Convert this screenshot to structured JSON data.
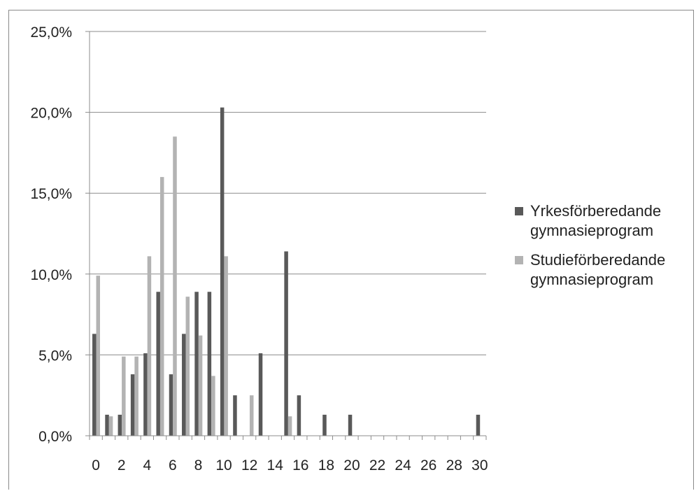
{
  "chart_data": {
    "type": "bar",
    "categories": [
      "0",
      "1",
      "2",
      "3",
      "4",
      "5",
      "6",
      "7",
      "8",
      "9",
      "10",
      "11",
      "12",
      "13",
      "14",
      "15",
      "16",
      "17",
      "18",
      "19",
      "20",
      "21",
      "22",
      "23",
      "24",
      "25",
      "26",
      "27",
      "28",
      "29",
      "30"
    ],
    "x_tick_labels": [
      "0",
      "2",
      "4",
      "6",
      "8",
      "10",
      "12",
      "14",
      "16",
      "18",
      "20",
      "22",
      "24",
      "26",
      "28",
      "30"
    ],
    "y_tick_labels": [
      "0,0%",
      "5,0%",
      "10,0%",
      "15,0%",
      "20,0%",
      "25,0%"
    ],
    "ylim": [
      0,
      25
    ],
    "y_unit": "%",
    "grid": true,
    "legend_position": "right",
    "series": [
      {
        "name": "Yrkesförberedande\ngymnasieprogram",
        "color": "#595959",
        "values": [
          6.3,
          1.3,
          1.3,
          3.8,
          5.1,
          8.9,
          3.8,
          6.3,
          8.9,
          8.9,
          20.3,
          2.5,
          0,
          5.1,
          0,
          11.4,
          2.5,
          0,
          1.3,
          0,
          1.3,
          0,
          0,
          0,
          0,
          0,
          0,
          0,
          0,
          0,
          1.3
        ]
      },
      {
        "name": "Studieförberedande\ngymnasieprogram",
        "color": "#b3b3b3",
        "values": [
          9.9,
          1.2,
          4.9,
          4.9,
          11.1,
          16.0,
          18.5,
          8.6,
          6.2,
          3.7,
          11.1,
          0,
          2.5,
          0,
          0,
          1.2,
          0,
          0,
          0,
          0,
          0,
          0,
          0,
          0,
          0,
          0,
          0,
          0,
          0,
          0,
          0
        ]
      }
    ]
  }
}
